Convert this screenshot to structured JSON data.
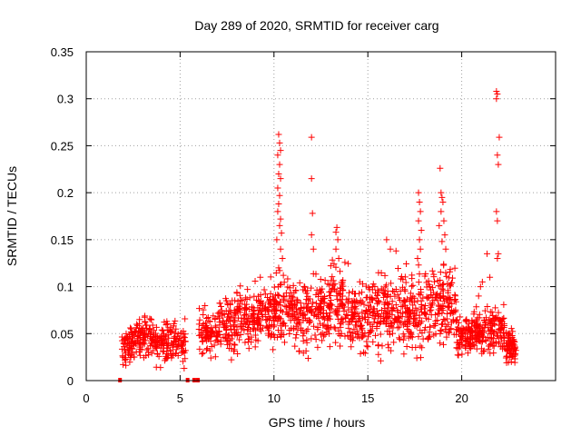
{
  "chart_data": {
    "type": "scatter",
    "title": "Day 289 of 2020, SRMTID for receiver carg",
    "xlabel": "GPS time / hours",
    "ylabel": "SRMTID / TECUs",
    "xlim": [
      0,
      25
    ],
    "ylim": [
      0,
      0.35
    ],
    "xticks": [
      0,
      5,
      10,
      15,
      20
    ],
    "xtick_labels": [
      "0",
      "5",
      "10",
      "15",
      "20"
    ],
    "yticks": [
      0,
      0.05,
      0.1,
      0.15,
      0.2,
      0.25,
      0.3,
      0.35
    ],
    "ytick_labels": [
      "0",
      "0.05",
      "0.1",
      "0.15",
      "0.2",
      "0.25",
      "0.3",
      "0.35"
    ],
    "grid": true,
    "marker": "+",
    "color": "#ff0000",
    "zero_points": [
      [
        1.8,
        0
      ],
      [
        5.4,
        0
      ],
      [
        5.75,
        0
      ],
      [
        5.95,
        0
      ]
    ],
    "peak_points": [
      [
        10.25,
        0.262
      ],
      [
        10.3,
        0.253
      ],
      [
        10.35,
        0.245
      ],
      [
        10.2,
        0.24
      ],
      [
        10.3,
        0.23
      ],
      [
        10.25,
        0.22
      ],
      [
        10.35,
        0.215
      ],
      [
        10.2,
        0.205
      ],
      [
        10.3,
        0.197
      ],
      [
        10.25,
        0.188
      ],
      [
        10.2,
        0.18
      ],
      [
        10.35,
        0.172
      ],
      [
        10.3,
        0.165
      ],
      [
        10.4,
        0.157
      ],
      [
        10.15,
        0.15
      ],
      [
        10.35,
        0.14
      ],
      [
        10.45,
        0.13
      ],
      [
        10.25,
        0.12
      ],
      [
        10.5,
        0.112
      ],
      [
        12.0,
        0.259
      ],
      [
        12.0,
        0.215
      ],
      [
        12.05,
        0.178
      ],
      [
        12.0,
        0.155
      ],
      [
        12.1,
        0.14
      ],
      [
        13.35,
        0.163
      ],
      [
        13.3,
        0.158
      ],
      [
        13.4,
        0.15
      ],
      [
        13.3,
        0.14
      ],
      [
        13.45,
        0.13
      ],
      [
        16.0,
        0.15
      ],
      [
        16.2,
        0.14
      ],
      [
        16.5,
        0.138
      ],
      [
        17.7,
        0.2
      ],
      [
        17.75,
        0.19
      ],
      [
        17.8,
        0.18
      ],
      [
        17.7,
        0.17
      ],
      [
        17.85,
        0.16
      ],
      [
        17.75,
        0.15
      ],
      [
        17.8,
        0.14
      ],
      [
        17.65,
        0.13
      ],
      [
        18.85,
        0.226
      ],
      [
        18.9,
        0.2
      ],
      [
        18.95,
        0.195
      ],
      [
        19.0,
        0.19
      ],
      [
        18.9,
        0.18
      ],
      [
        19.05,
        0.17
      ],
      [
        18.8,
        0.165
      ],
      [
        19.1,
        0.155
      ],
      [
        18.95,
        0.148
      ],
      [
        19.15,
        0.14
      ],
      [
        21.85,
        0.308
      ],
      [
        21.9,
        0.305
      ],
      [
        21.85,
        0.3
      ],
      [
        22.0,
        0.259
      ],
      [
        21.9,
        0.24
      ],
      [
        21.95,
        0.23
      ],
      [
        21.85,
        0.18
      ],
      [
        21.9,
        0.17
      ],
      [
        21.95,
        0.135
      ],
      [
        21.9,
        0.13
      ],
      [
        21.5,
        0.11
      ],
      [
        21.1,
        0.105
      ],
      [
        21.0,
        0.1
      ],
      [
        20.9,
        0.09
      ],
      [
        21.35,
        0.135
      ]
    ],
    "envelope": {
      "description": "Dense scatter of SRMTID values vs time; each segment gives [start_hour, end_hour, typical_min, typical_max, point_count]",
      "segments": [
        [
          1.9,
          2.6,
          0.01,
          0.065,
          70
        ],
        [
          2.6,
          3.5,
          0.012,
          0.075,
          80
        ],
        [
          3.5,
          4.4,
          0.01,
          0.072,
          80
        ],
        [
          4.4,
          5.3,
          0.01,
          0.07,
          70
        ],
        [
          6.0,
          7.0,
          0.018,
          0.085,
          80
        ],
        [
          7.0,
          8.0,
          0.02,
          0.1,
          90
        ],
        [
          8.0,
          9.0,
          0.02,
          0.115,
          90
        ],
        [
          9.0,
          10.0,
          0.02,
          0.12,
          90
        ],
        [
          10.0,
          11.0,
          0.02,
          0.13,
          90
        ],
        [
          11.0,
          12.0,
          0.015,
          0.12,
          90
        ],
        [
          12.0,
          13.0,
          0.015,
          0.13,
          90
        ],
        [
          13.0,
          14.0,
          0.02,
          0.14,
          90
        ],
        [
          14.0,
          15.0,
          0.015,
          0.12,
          90
        ],
        [
          15.0,
          16.0,
          0.015,
          0.13,
          90
        ],
        [
          16.0,
          17.0,
          0.02,
          0.13,
          90
        ],
        [
          17.0,
          18.0,
          0.015,
          0.13,
          90
        ],
        [
          18.0,
          19.0,
          0.02,
          0.14,
          90
        ],
        [
          19.0,
          19.7,
          0.02,
          0.14,
          70
        ],
        [
          19.7,
          20.5,
          0.02,
          0.075,
          80
        ],
        [
          20.5,
          21.5,
          0.02,
          0.085,
          90
        ],
        [
          21.5,
          22.3,
          0.02,
          0.09,
          80
        ],
        [
          22.3,
          22.9,
          0.01,
          0.06,
          70
        ]
      ]
    }
  }
}
